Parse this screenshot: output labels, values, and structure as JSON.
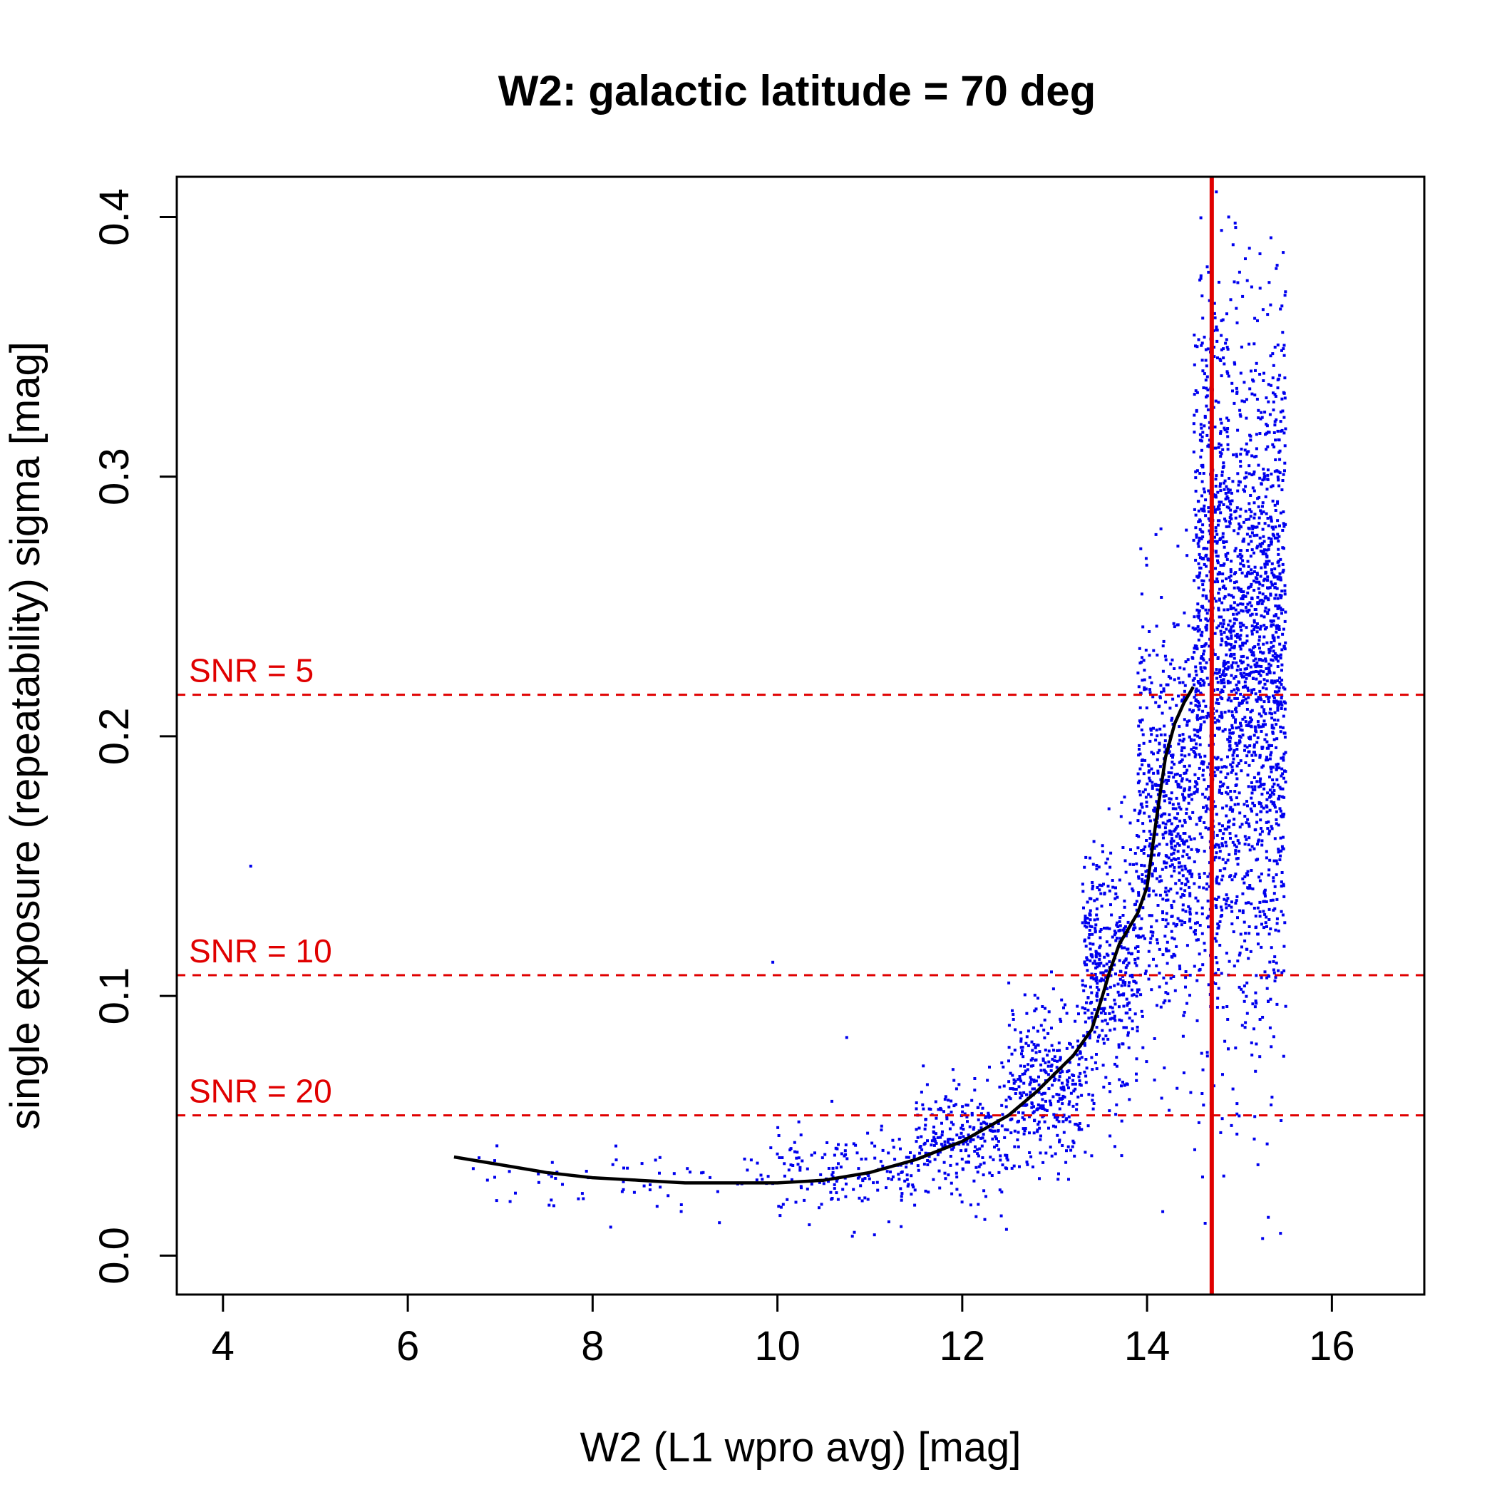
{
  "chart_data": {
    "type": "scatter",
    "title": "W2: galactic latitude = 70 deg",
    "xlabel": "W2 (L1 wpro avg) [mag]",
    "ylabel": "single exposure (repeatability) sigma [mag]",
    "xlim": [
      3.5,
      17.0
    ],
    "ylim": [
      -0.015,
      0.4155
    ],
    "xticks": [
      4,
      6,
      8,
      10,
      12,
      14,
      16
    ],
    "yticks": [
      0.0,
      0.1,
      0.2,
      0.3,
      0.4
    ],
    "xtick_labels": [
      "4",
      "6",
      "8",
      "10",
      "12",
      "14",
      "16"
    ],
    "ytick_labels": [
      "0.0",
      "0.1",
      "0.2",
      "0.3",
      "0.4"
    ],
    "grid": false,
    "legend": "none",
    "colors": {
      "points": "#0000ee",
      "curve": "#000000",
      "reference_lines": "#e00000",
      "axes": "#000000"
    },
    "reference_lines": [
      {
        "orientation": "horizontal",
        "style": "dashed",
        "y": 0.216,
        "label": "SNR = 5"
      },
      {
        "orientation": "horizontal",
        "style": "dashed",
        "y": 0.108,
        "label": "SNR = 10"
      },
      {
        "orientation": "horizontal",
        "style": "dashed",
        "y": 0.054,
        "label": "SNR = 20"
      },
      {
        "orientation": "vertical",
        "style": "solid",
        "x": 14.7,
        "label": ""
      }
    ],
    "trend_curve": {
      "x": [
        6.5,
        7.0,
        7.5,
        8.0,
        8.5,
        9.0,
        9.5,
        10.0,
        10.5,
        11.0,
        11.5,
        12.0,
        12.5,
        12.8,
        13.0,
        13.2,
        13.4,
        13.5,
        13.6,
        13.7,
        13.8,
        13.9,
        14.0,
        14.1,
        14.2,
        14.3,
        14.4,
        14.5
      ],
      "y": [
        0.038,
        0.035,
        0.032,
        0.03,
        0.029,
        0.028,
        0.028,
        0.028,
        0.029,
        0.032,
        0.037,
        0.044,
        0.054,
        0.063,
        0.07,
        0.077,
        0.087,
        0.098,
        0.11,
        0.12,
        0.126,
        0.132,
        0.142,
        0.168,
        0.192,
        0.205,
        0.213,
        0.219
      ]
    },
    "point_clouds": [
      {
        "x_range": [
          6.7,
          10.0
        ],
        "sigma_center": 0.029,
        "sigma_spread": 0.006,
        "count": 70
      },
      {
        "x_range": [
          10.0,
          11.5
        ],
        "sigma_center": 0.032,
        "sigma_spread": 0.008,
        "count": 160
      },
      {
        "x_range": [
          11.5,
          12.5
        ],
        "sigma_center": 0.045,
        "sigma_spread": 0.011,
        "count": 260
      },
      {
        "x_range": [
          12.5,
          13.3
        ],
        "sigma_center": 0.066,
        "sigma_spread": 0.016,
        "count": 340
      },
      {
        "x_range": [
          13.3,
          13.9
        ],
        "sigma_center": 0.11,
        "sigma_spread": 0.025,
        "count": 420
      },
      {
        "x_range": [
          13.9,
          14.5
        ],
        "sigma_center": 0.17,
        "sigma_spread": 0.04,
        "count": 620
      },
      {
        "x_range": [
          14.5,
          15.5
        ],
        "sigma_center": 0.23,
        "sigma_spread": 0.07,
        "count": 2200
      }
    ],
    "outliers": [
      {
        "x": 4.3,
        "y": 0.15
      },
      {
        "x": 9.95,
        "y": 0.113
      },
      {
        "x": 10.75,
        "y": 0.084
      },
      {
        "x": 11.05,
        "y": 0.008
      },
      {
        "x": 12.15,
        "y": 0.015
      },
      {
        "x": 15.2,
        "y": 0.035
      },
      {
        "x": 15.3,
        "y": 0.043
      },
      {
        "x": 15.45,
        "y": 0.052
      },
      {
        "x": 15.5,
        "y": 0.096
      }
    ]
  }
}
